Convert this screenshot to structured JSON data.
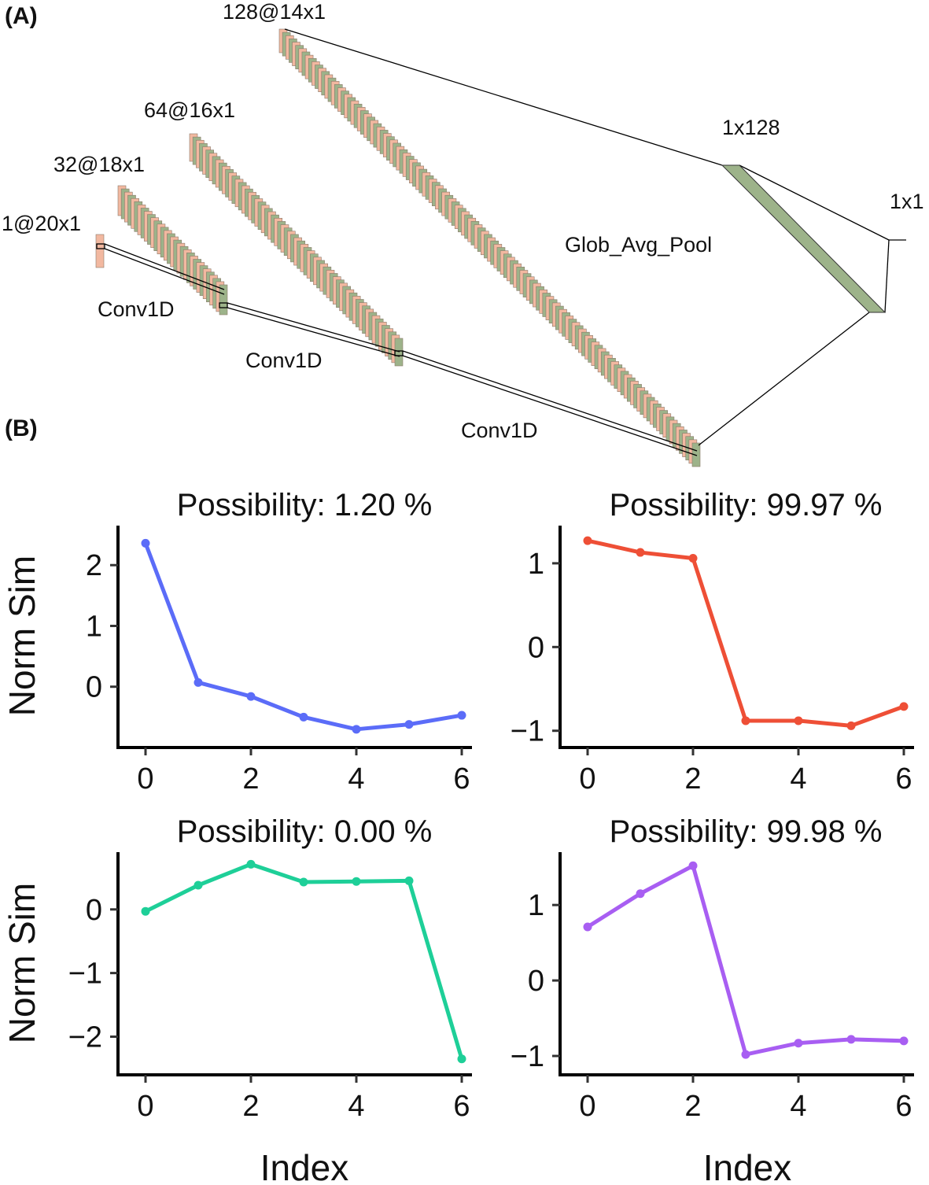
{
  "panels": {
    "a": "(A)",
    "b": "(B)"
  },
  "diagram": {
    "layers": [
      {
        "label": "1@20x1",
        "maps": 1
      },
      {
        "label": "32@18x1",
        "maps": 32
      },
      {
        "label": "64@16x1",
        "maps": 64
      },
      {
        "label": "128@14x1",
        "maps": 128
      },
      {
        "label": "1x128"
      },
      {
        "label": "1x1"
      }
    ],
    "operations": [
      "Conv1D",
      "Conv1D",
      "Conv1D",
      "Glob_Avg_Pool"
    ],
    "colors": {
      "feature_map_a": "#f2b8a0",
      "feature_map_b": "#9db38a",
      "edge": "#000000"
    }
  },
  "chart_data": [
    {
      "type": "line",
      "title": "Possibility: 1.20 %",
      "ylabel": "Norm Sim",
      "xlabel": "",
      "x": [
        0,
        1,
        2,
        3,
        4,
        5,
        6
      ],
      "y": [
        2.36,
        0.07,
        -0.16,
        -0.5,
        -0.7,
        -0.62,
        -0.47
      ],
      "xticks": [
        "0",
        "2",
        "4",
        "6"
      ],
      "yticks": [
        "0",
        "1",
        "2"
      ],
      "ylim": [
        -1.0,
        2.65
      ],
      "xlim": [
        -0.5,
        6.5
      ],
      "color": "#5b6cf8",
      "grid": false
    },
    {
      "type": "line",
      "title": "Possibility: 99.97 %",
      "ylabel": "",
      "xlabel": "",
      "x": [
        0,
        1,
        2,
        3,
        4,
        5,
        6
      ],
      "y": [
        1.27,
        1.13,
        1.06,
        -0.88,
        -0.88,
        -0.94,
        -0.71
      ],
      "xticks": [
        "0",
        "2",
        "4",
        "6"
      ],
      "yticks": [
        "−1",
        "0",
        "1"
      ],
      "ylim": [
        -1.2,
        1.45
      ],
      "xlim": [
        -0.5,
        6.5
      ],
      "color": "#ee4f36",
      "grid": false
    },
    {
      "type": "line",
      "title": "Possibility: 0.00 %",
      "ylabel": "Norm Sim",
      "xlabel": "Index",
      "x": [
        0,
        1,
        2,
        3,
        4,
        5,
        6
      ],
      "y": [
        -0.03,
        0.38,
        0.71,
        0.43,
        0.44,
        0.45,
        -2.35
      ],
      "xticks": [
        "0",
        "2",
        "4",
        "6"
      ],
      "yticks": [
        "−2",
        "−1",
        "0"
      ],
      "ylim": [
        -2.6,
        0.9
      ],
      "xlim": [
        -0.5,
        6.5
      ],
      "color": "#1ecf98",
      "grid": false
    },
    {
      "type": "line",
      "title": "Possibility: 99.98 %",
      "ylabel": "",
      "xlabel": "Index",
      "x": [
        0,
        1,
        2,
        3,
        4,
        5,
        6
      ],
      "y": [
        0.71,
        1.15,
        1.52,
        -0.98,
        -0.83,
        -0.78,
        -0.8
      ],
      "xticks": [
        "0",
        "2",
        "4",
        "6"
      ],
      "yticks": [
        "−1",
        "0",
        "1"
      ],
      "ylim": [
        -1.25,
        1.7
      ],
      "xlim": [
        -0.5,
        6.5
      ],
      "color": "#a85ef2",
      "grid": false
    }
  ]
}
